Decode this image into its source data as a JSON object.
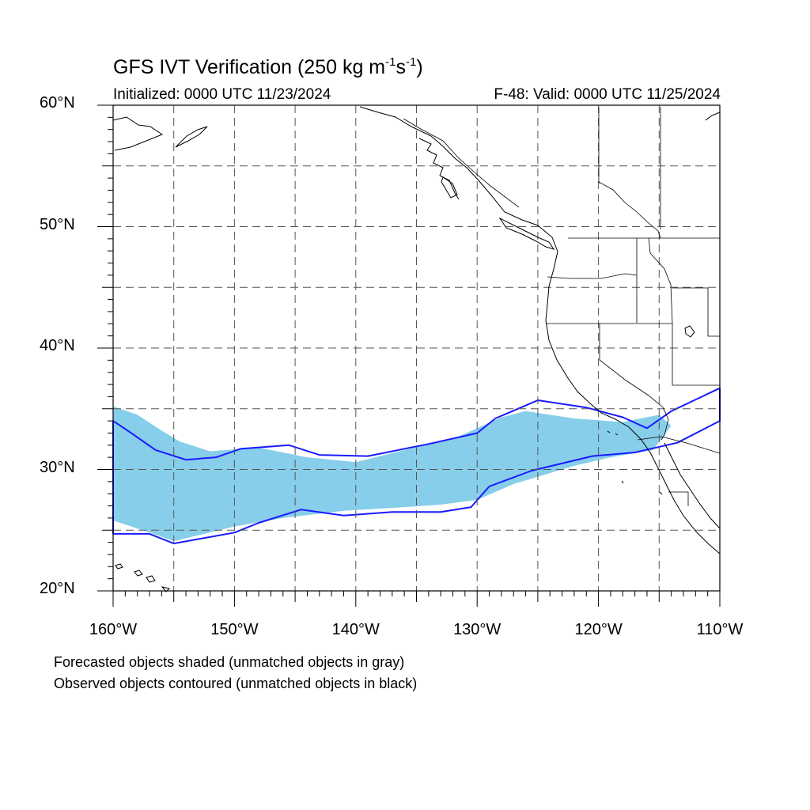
{
  "title": {
    "main": "GFS IVT Verification (250 kg m",
    "sup1": "-1",
    "mid": "s",
    "sup2": "-1",
    "end": ")"
  },
  "subtitle_left": "Initialized: 0000 UTC 11/23/2024",
  "subtitle_right": "F-48: Valid: 0000 UTC 11/25/2024",
  "lat_labels": [
    "60°N",
    "50°N",
    "40°N",
    "30°N",
    "20°N"
  ],
  "lon_labels": [
    "160°W",
    "150°W",
    "140°W",
    "130°W",
    "120°W",
    "110°W"
  ],
  "footnotes": [
    "Forecasted objects shaded (unmatched objects in gray)",
    "Observed objects contoured (unmatched objects in black)"
  ],
  "map": {
    "lon_range": [
      -160,
      -110
    ],
    "lat_range": [
      20,
      60
    ],
    "grid_spacing_deg": 5,
    "grid": true,
    "projection": "cylindrical equidistant"
  },
  "legend": {
    "forecast_matched_color": "#87ceea",
    "observed_matched_color": "#1a1aff",
    "forecast_unmatched_color": "gray",
    "observed_unmatched_color": "black"
  },
  "objects": {
    "forecast": [
      {
        "lon": -160,
        "lat": 35.2
      },
      {
        "lon": -158,
        "lat": 34.5
      },
      {
        "lon": -156,
        "lat": 33.2
      },
      {
        "lon": -154.5,
        "lat": 32.3
      },
      {
        "lon": -152,
        "lat": 31.5
      },
      {
        "lon": -148,
        "lat": 31.8
      },
      {
        "lon": -144,
        "lat": 31.0
      },
      {
        "lon": -140,
        "lat": 30.6
      },
      {
        "lon": -136,
        "lat": 31.6
      },
      {
        "lon": -132,
        "lat": 32.5
      },
      {
        "lon": -128,
        "lat": 34.3
      },
      {
        "lon": -126,
        "lat": 34.8
      },
      {
        "lon": -122,
        "lat": 34.2
      },
      {
        "lon": -118,
        "lat": 33.9
      },
      {
        "lon": -115,
        "lat": 34.5
      },
      {
        "lon": -114,
        "lat": 33.6
      },
      {
        "lon": -115.5,
        "lat": 31.6
      },
      {
        "lon": -119,
        "lat": 31.0
      },
      {
        "lon": -122,
        "lat": 30.3
      },
      {
        "lon": -127,
        "lat": 28.8
      },
      {
        "lon": -130,
        "lat": 27.5
      },
      {
        "lon": -133,
        "lat": 27.1
      },
      {
        "lon": -136,
        "lat": 26.9
      },
      {
        "lon": -141,
        "lat": 26.6
      },
      {
        "lon": -146,
        "lat": 26.0
      },
      {
        "lon": -150,
        "lat": 25.3
      },
      {
        "lon": -155,
        "lat": 24.1
      },
      {
        "lon": -157,
        "lat": 24.8
      },
      {
        "lon": -160,
        "lat": 25.8
      }
    ],
    "observed": [
      {
        "lon": -160,
        "lat": 34.0
      },
      {
        "lon": -158.5,
        "lat": 33.0
      },
      {
        "lon": -156.5,
        "lat": 31.6
      },
      {
        "lon": -154,
        "lat": 30.8
      },
      {
        "lon": -151.5,
        "lat": 31.0
      },
      {
        "lon": -149.5,
        "lat": 31.7
      },
      {
        "lon": -145.5,
        "lat": 32.0
      },
      {
        "lon": -143,
        "lat": 31.2
      },
      {
        "lon": -139,
        "lat": 31.1
      },
      {
        "lon": -134,
        "lat": 32.1
      },
      {
        "lon": -130,
        "lat": 33.0
      },
      {
        "lon": -128.5,
        "lat": 34.2
      },
      {
        "lon": -125,
        "lat": 35.7
      },
      {
        "lon": -121,
        "lat": 35.1
      },
      {
        "lon": -118,
        "lat": 34.3
      },
      {
        "lon": -116,
        "lat": 33.4
      },
      {
        "lon": -114,
        "lat": 34.8
      },
      {
        "lon": -110,
        "lat": 36.7
      },
      {
        "lon": -110,
        "lat": 34.0
      },
      {
        "lon": -113.5,
        "lat": 32.2
      },
      {
        "lon": -117,
        "lat": 31.4
      },
      {
        "lon": -120.5,
        "lat": 31.1
      },
      {
        "lon": -125.5,
        "lat": 29.9
      },
      {
        "lon": -129,
        "lat": 28.6
      },
      {
        "lon": -130.5,
        "lat": 26.9
      },
      {
        "lon": -133,
        "lat": 26.5
      },
      {
        "lon": -137,
        "lat": 26.5
      },
      {
        "lon": -141,
        "lat": 26.2
      },
      {
        "lon": -144.5,
        "lat": 26.7
      },
      {
        "lon": -148,
        "lat": 25.6
      },
      {
        "lon": -150,
        "lat": 24.8
      },
      {
        "lon": -155,
        "lat": 23.9
      },
      {
        "lon": -157,
        "lat": 24.7
      },
      {
        "lon": -160,
        "lat": 24.7
      }
    ]
  }
}
